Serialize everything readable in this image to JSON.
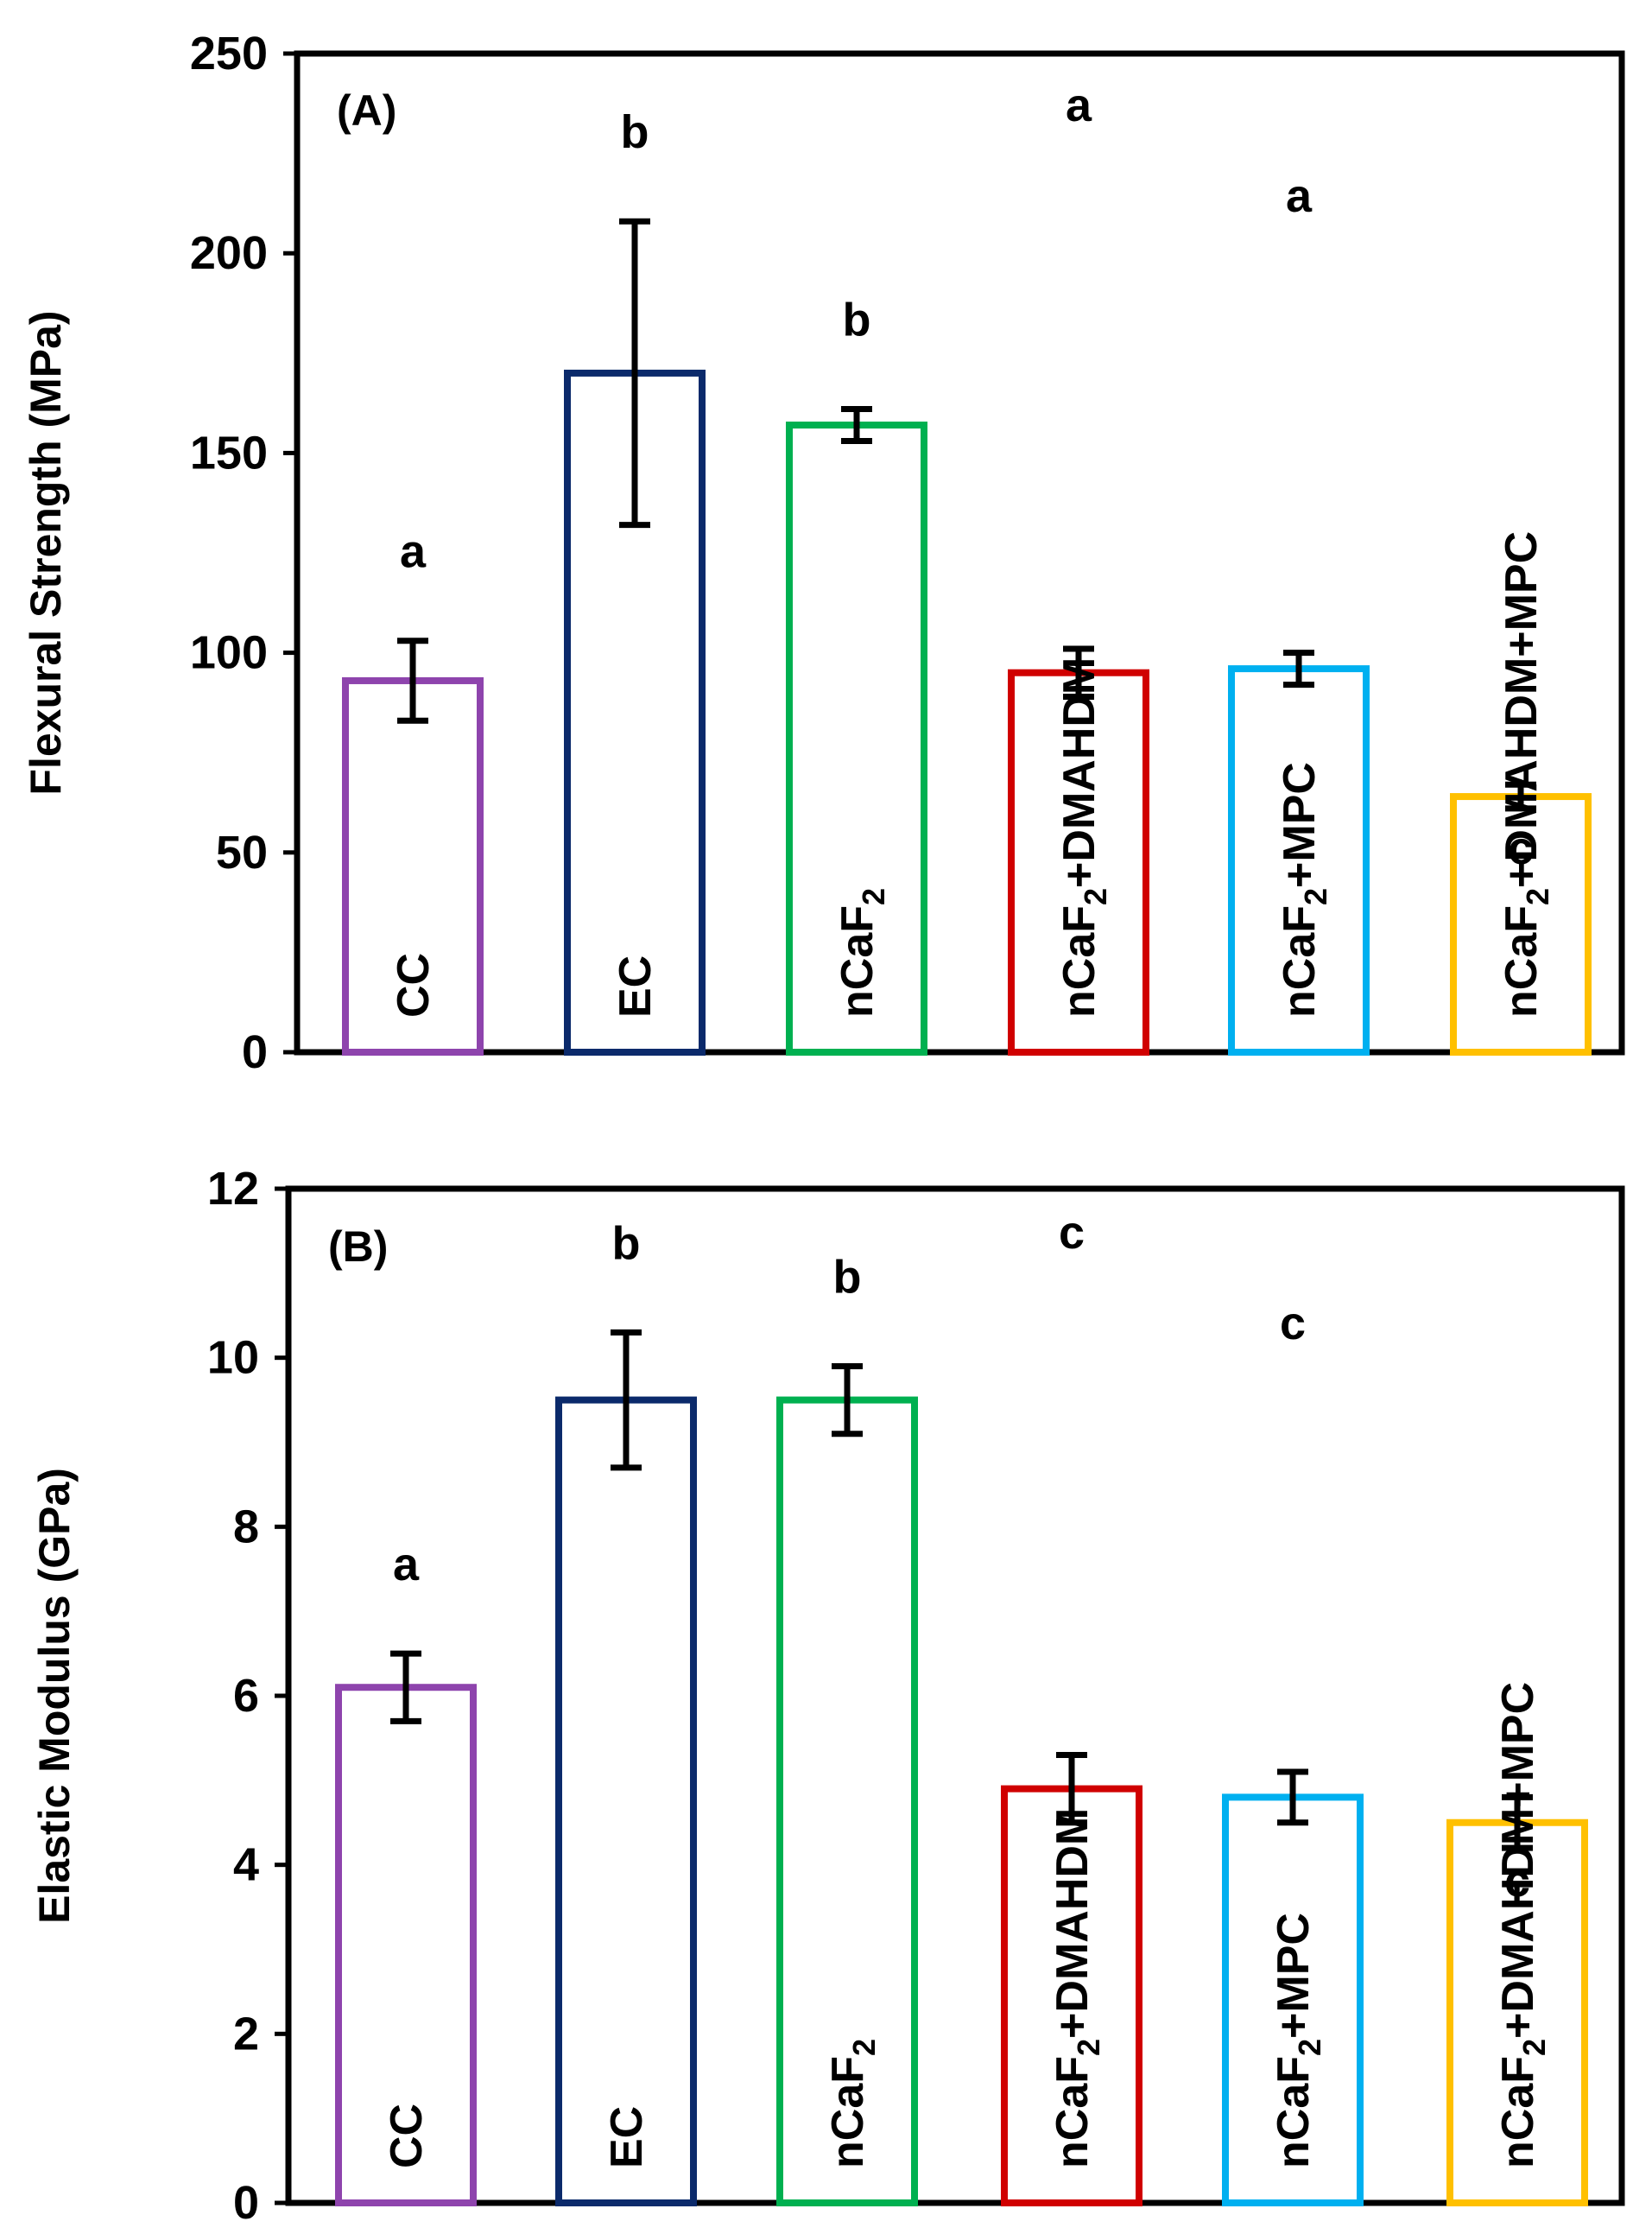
{
  "chart_data": [
    {
      "type": "bar",
      "panel_label": "(A)",
      "ylabel": "Flexural Strength (MPa)",
      "xlabel": "",
      "ylim": [
        0,
        250
      ],
      "yticks": [
        "0",
        "50",
        "100",
        "150",
        "200",
        "250"
      ],
      "categories": [
        "CC",
        "EC",
        "nCaF2",
        "nCaF2+DMAHDM",
        "nCaF2+MPC",
        "nCaF2+DMAHDM+MPC"
      ],
      "category_labels": [
        [
          {
            "t": "CC"
          }
        ],
        [
          {
            "t": "EC"
          }
        ],
        [
          {
            "t": "nCaF"
          },
          {
            "t": "2",
            "sub": true
          }
        ],
        [
          {
            "t": "nCaF"
          },
          {
            "t": "2",
            "sub": true
          },
          {
            "t": "+DMAHDM"
          }
        ],
        [
          {
            "t": "nCaF"
          },
          {
            "t": "2",
            "sub": true
          },
          {
            "t": "+MPC"
          }
        ],
        [
          {
            "t": "nCaF"
          },
          {
            "t": "2",
            "sub": true
          },
          {
            "t": "+DMAHDM+MPC"
          }
        ]
      ],
      "values": [
        93,
        170,
        157,
        95,
        96,
        64
      ],
      "errors": [
        10,
        38,
        4,
        6,
        4,
        3
      ],
      "significance": [
        "a",
        "b",
        "b",
        "a",
        "a",
        "c"
      ],
      "colors": [
        "#8E44AD",
        "#0B2A6B",
        "#00B050",
        "#D00000",
        "#00B0F0",
        "#FFC000"
      ]
    },
    {
      "type": "bar",
      "panel_label": "(B)",
      "ylabel": "Elastic Modulus (GPa)",
      "xlabel": "",
      "ylim": [
        0,
        12
      ],
      "yticks": [
        "0",
        "2",
        "4",
        "6",
        "8",
        "10",
        "12"
      ],
      "categories": [
        "CC",
        "EC",
        "nCaF2",
        "nCaF2+DMAHDM",
        "nCaF2+MPC",
        "nCaF2+DMAHDM+MPC"
      ],
      "category_labels": [
        [
          {
            "t": "CC"
          }
        ],
        [
          {
            "t": "EC"
          }
        ],
        [
          {
            "t": "nCaF"
          },
          {
            "t": "2",
            "sub": true
          }
        ],
        [
          {
            "t": "nCaF"
          },
          {
            "t": "2",
            "sub": true
          },
          {
            "t": "+DMAHDM"
          }
        ],
        [
          {
            "t": "nCaF"
          },
          {
            "t": "2",
            "sub": true
          },
          {
            "t": "+MPC"
          }
        ],
        [
          {
            "t": "nCaF"
          },
          {
            "t": "2",
            "sub": true
          },
          {
            "t": "+DMAHDM+MPC"
          }
        ]
      ],
      "values": [
        6.1,
        9.5,
        9.5,
        4.9,
        4.8,
        4.5
      ],
      "errors": [
        0.4,
        0.8,
        0.4,
        0.4,
        0.3,
        0.3
      ],
      "significance": [
        "a",
        "b",
        "b",
        "c",
        "c",
        "c"
      ],
      "colors": [
        "#8E44AD",
        "#0B2A6B",
        "#00B050",
        "#D00000",
        "#00B0F0",
        "#FFC000"
      ]
    }
  ]
}
